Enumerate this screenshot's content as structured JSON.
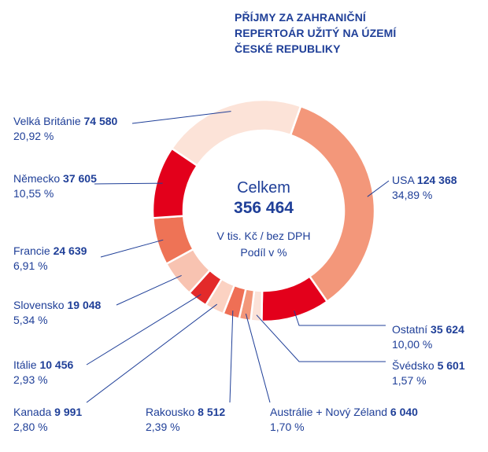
{
  "title_lines": [
    "PŘÍJMY ZA ZAHRANIČNÍ",
    "REPERTOÁR UŽITÝ NA ÚZEMÍ",
    "ČESKÉ REPUBLIKY"
  ],
  "chart_data": {
    "type": "pie",
    "title": "PŘÍJMY ZA ZAHRANIČNÍ REPERTOÁR UŽITÝ NA ÚZEMÍ ČESKÉ REPUBLIKY",
    "center": {
      "label": "Celkem",
      "total": "356 464",
      "units": "V tis. Kč / bez DPH",
      "share_label": "Podíl v %"
    },
    "slices": [
      {
        "name": "USA",
        "value": 124368,
        "value_text": "124 368",
        "percent": 34.89,
        "percent_text": "34,89 %",
        "color": "#f3977a"
      },
      {
        "name": "Ostatní",
        "value": 35624,
        "value_text": "35 624",
        "percent": 10.0,
        "percent_text": "10,00 %",
        "color": "#e3001b"
      },
      {
        "name": "Švédsko",
        "value": 5601,
        "value_text": "5 601",
        "percent": 1.57,
        "percent_text": "1,57 %",
        "color": "#fbe2d8"
      },
      {
        "name": "Austrálie + Nový Zéland",
        "value": 6040,
        "value_text": "6 040",
        "percent": 1.7,
        "percent_text": "1,70 %",
        "color": "#f3977a"
      },
      {
        "name": "Rakousko",
        "value": 8512,
        "value_text": "8 512",
        "percent": 2.39,
        "percent_text": "2,39 %",
        "color": "#ef6f55"
      },
      {
        "name": "Kanada",
        "value": 9991,
        "value_text": "9 991",
        "percent": 2.8,
        "percent_text": "2,80 %",
        "color": "#fbd2c2"
      },
      {
        "name": "Itálie",
        "value": 10456,
        "value_text": "10 456",
        "percent": 2.93,
        "percent_text": "2,93 %",
        "color": "#e32a2a"
      },
      {
        "name": "Slovensko",
        "value": 19048,
        "value_text": "19 048",
        "percent": 5.34,
        "percent_text": "5,34 %",
        "color": "#f8c3b1"
      },
      {
        "name": "Francie",
        "value": 24639,
        "value_text": "24 639",
        "percent": 6.91,
        "percent_text": "6,91 %",
        "color": "#ee7356"
      },
      {
        "name": "Německo",
        "value": 37605,
        "value_text": "37 605",
        "percent": 10.55,
        "percent_text": "10,55 %",
        "color": "#e3001b"
      },
      {
        "name": "Velká Británie",
        "value": 74580,
        "value_text": "74 580",
        "percent": 20.92,
        "percent_text": "20,92 %",
        "color": "#fce3d8"
      }
    ]
  }
}
